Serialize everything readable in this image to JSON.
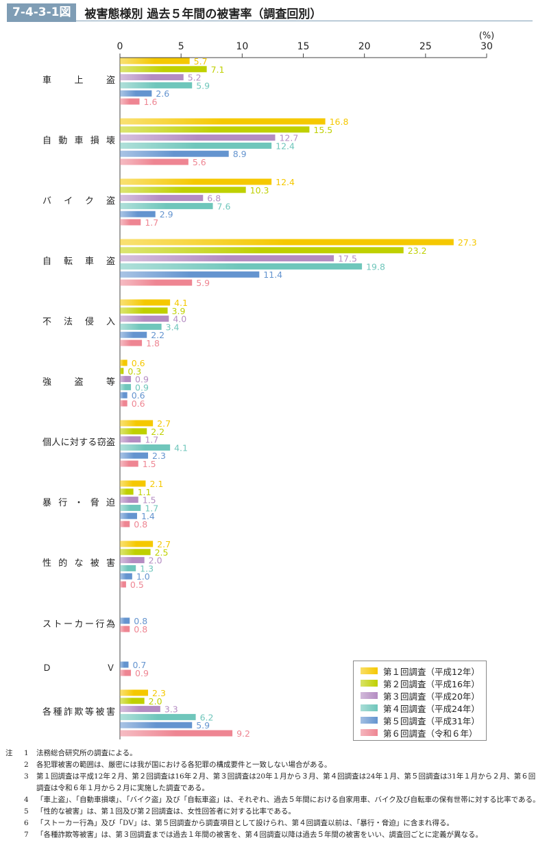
{
  "header": {
    "figure_no": "7-4-3-1図",
    "title": "被害態様別 過去５年間の被害率（調査回別）"
  },
  "chart_data": {
    "type": "bar",
    "orientation": "horizontal",
    "title": "被害態様別 過去５年間の被害率（調査回別）",
    "unit": "(%)",
    "xlim": [
      0,
      30
    ],
    "ticks": [
      "0",
      "5",
      "10",
      "15",
      "20",
      "25",
      "30"
    ],
    "categories": [
      "車上盗",
      "自動車損壊",
      "バイク盗",
      "自転車盗",
      "不法侵入",
      "強盗等",
      "個人に対する窃盗",
      "暴行・脅迫",
      "性的な被害",
      "ストーカー行為",
      "ＤＶ",
      "各種詐欺等被害"
    ],
    "series": [
      {
        "name": "第１回調査（平成12年）",
        "color": "#f5c800",
        "values": [
          5.7,
          16.8,
          12.4,
          27.3,
          4.1,
          0.6,
          2.7,
          2.1,
          2.7,
          null,
          null,
          2.3
        ]
      },
      {
        "name": "第２回調査（平成16年）",
        "color": "#bfd000",
        "values": [
          7.1,
          15.5,
          10.3,
          23.2,
          3.9,
          0.3,
          2.2,
          1.1,
          2.5,
          null,
          null,
          2.0
        ]
      },
      {
        "name": "第３回調査（平成20年）",
        "color": "#b48cc2",
        "values": [
          5.2,
          12.7,
          6.8,
          17.5,
          4.0,
          0.9,
          1.7,
          1.5,
          2.0,
          null,
          null,
          3.3
        ]
      },
      {
        "name": "第４回調査（平成24年）",
        "color": "#6fc6bb",
        "values": [
          5.9,
          12.4,
          7.6,
          19.8,
          3.4,
          0.9,
          4.1,
          1.7,
          1.3,
          null,
          null,
          6.2
        ]
      },
      {
        "name": "第５回調査（平成31年）",
        "color": "#6494cf",
        "values": [
          2.6,
          8.9,
          2.9,
          11.4,
          2.2,
          0.6,
          2.3,
          1.4,
          1.0,
          0.8,
          0.7,
          5.9
        ]
      },
      {
        "name": "第６回調査（令和６年）",
        "color": "#ee8592",
        "values": [
          1.6,
          5.6,
          1.7,
          5.9,
          1.8,
          0.6,
          1.5,
          0.8,
          0.5,
          0.8,
          0.9,
          9.2
        ]
      }
    ],
    "legend": "bottom-right"
  },
  "notes": {
    "prefix": "注",
    "items": [
      {
        "n": "1",
        "t": "法務総合研究所の調査による。"
      },
      {
        "n": "2",
        "t": "各犯罪被害の範囲は、厳密には我が国における各犯罪の構成要件と一致しない場合がある。"
      },
      {
        "n": "3",
        "t": "第１回調査は平成12年２月、第２回調査は16年２月、第３回調査は20年１月から３月、第４回調査は24年１月、第５回調査は31年１月から２月、第６回調査は令和６年１月から２月に実施した調査である。"
      },
      {
        "n": "4",
        "t": "「車上盗」、「自動車損壊」、「バイク盗」及び「自転車盗」は、それぞれ、過去５年間における自家用車、バイク及び自転車の保有世帯に対する比率である。"
      },
      {
        "n": "5",
        "t": "「性的な被害」は、第１回及び第２回調査は、女性回答者に対する比率である。"
      },
      {
        "n": "6",
        "t": "「ストーカー行為」及び「DV」は、第５回調査から調査項目として設けられ、第４回調査以前は、「暴行・脅迫」に含まれ得る。"
      },
      {
        "n": "7",
        "t": "「各種詐欺等被害」は、第３回調査までは過去１年間の被害を、第４回調査以降は過去５年間の被害をいい、調査回ごとに定義が異なる。"
      }
    ]
  }
}
